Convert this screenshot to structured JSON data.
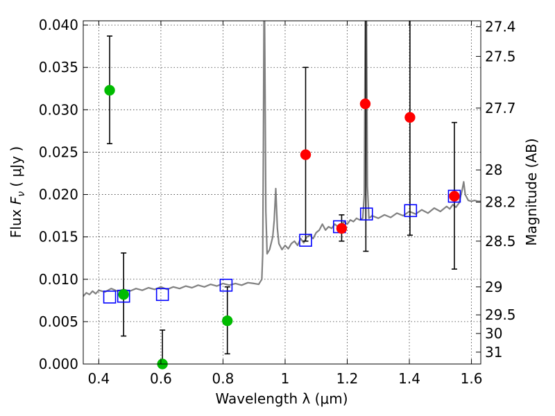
{
  "chart_data": {
    "type": "scatter",
    "title": "",
    "xlabel": "Wavelength  λ (μm)",
    "ylabel": "Flux  F_ν  ( μJy )",
    "ylabel_parts": {
      "prefix": "Flux  ",
      "var": "F",
      "sub": "ν",
      "unit": "  ( μJy )"
    },
    "y2label": "Magnitude (AB)",
    "xlim": [
      0.35,
      1.63
    ],
    "ylim": [
      0.0,
      0.0405
    ],
    "grid": true,
    "x_ticks": [
      {
        "value": 0.4,
        "label": "0.4"
      },
      {
        "value": 0.6,
        "label": "0.6"
      },
      {
        "value": 0.8,
        "label": "0.8"
      },
      {
        "value": 1.0,
        "label": "1"
      },
      {
        "value": 1.2,
        "label": "1.2"
      },
      {
        "value": 1.4,
        "label": "1.4"
      },
      {
        "value": 1.6,
        "label": "1.6"
      }
    ],
    "y_ticks": [
      {
        "value": 0.0,
        "label": "0.000"
      },
      {
        "value": 0.005,
        "label": "0.005"
      },
      {
        "value": 0.01,
        "label": "0.010"
      },
      {
        "value": 0.015,
        "label": "0.015"
      },
      {
        "value": 0.02,
        "label": "0.020"
      },
      {
        "value": 0.025,
        "label": "0.025"
      },
      {
        "value": 0.03,
        "label": "0.030"
      },
      {
        "value": 0.035,
        "label": "0.035"
      },
      {
        "value": 0.04,
        "label": "0.040"
      }
    ],
    "mag_ticks": [
      {
        "flux": 0.0398,
        "label": "27.4"
      },
      {
        "flux": 0.0363,
        "label": "27.5"
      },
      {
        "flux": 0.0302,
        "label": "27.7"
      },
      {
        "flux": 0.0229,
        "label": "28"
      },
      {
        "flux": 0.0191,
        "label": "28.2"
      },
      {
        "flux": 0.0145,
        "label": "28.5"
      },
      {
        "flux": 0.0091,
        "label": "29"
      },
      {
        "flux": 0.0058,
        "label": "29.5"
      },
      {
        "flux": 0.0036,
        "label": "30"
      },
      {
        "flux": 0.0014,
        "label": "31"
      }
    ],
    "series": [
      {
        "kind": "spectrum",
        "color": "#808080",
        "points": [
          [
            0.35,
            0.008
          ],
          [
            0.36,
            0.0084
          ],
          [
            0.37,
            0.0082
          ],
          [
            0.38,
            0.0086
          ],
          [
            0.39,
            0.0083
          ],
          [
            0.4,
            0.0087
          ],
          [
            0.42,
            0.0085
          ],
          [
            0.44,
            0.0089
          ],
          [
            0.46,
            0.0086
          ],
          [
            0.48,
            0.0088
          ],
          [
            0.5,
            0.0086
          ],
          [
            0.52,
            0.0089
          ],
          [
            0.54,
            0.0087
          ],
          [
            0.56,
            0.009
          ],
          [
            0.58,
            0.0088
          ],
          [
            0.6,
            0.0091
          ],
          [
            0.62,
            0.0088
          ],
          [
            0.64,
            0.0091
          ],
          [
            0.66,
            0.0089
          ],
          [
            0.68,
            0.0092
          ],
          [
            0.7,
            0.009
          ],
          [
            0.72,
            0.0093
          ],
          [
            0.74,
            0.0091
          ],
          [
            0.76,
            0.0094
          ],
          [
            0.78,
            0.0092
          ],
          [
            0.8,
            0.0095
          ],
          [
            0.82,
            0.0093
          ],
          [
            0.84,
            0.0095
          ],
          [
            0.86,
            0.0093
          ],
          [
            0.88,
            0.0096
          ],
          [
            0.9,
            0.0095
          ],
          [
            0.915,
            0.0094
          ],
          [
            0.925,
            0.01
          ],
          [
            0.928,
            0.013
          ],
          [
            0.93,
            0.025
          ],
          [
            0.932,
            0.0405
          ],
          [
            0.934,
            0.0405
          ],
          [
            0.936,
            0.03
          ],
          [
            0.938,
            0.018
          ],
          [
            0.942,
            0.013
          ],
          [
            0.95,
            0.0135
          ],
          [
            0.96,
            0.015
          ],
          [
            0.965,
            0.017
          ],
          [
            0.97,
            0.0207
          ],
          [
            0.975,
            0.016
          ],
          [
            0.98,
            0.0142
          ],
          [
            0.99,
            0.0135
          ],
          [
            1.0,
            0.014
          ],
          [
            1.01,
            0.0136
          ],
          [
            1.02,
            0.0142
          ],
          [
            1.03,
            0.0145
          ],
          [
            1.04,
            0.014
          ],
          [
            1.05,
            0.0148
          ],
          [
            1.06,
            0.0143
          ],
          [
            1.07,
            0.015
          ],
          [
            1.08,
            0.0152
          ],
          [
            1.09,
            0.0148
          ],
          [
            1.1,
            0.0155
          ],
          [
            1.11,
            0.0158
          ],
          [
            1.12,
            0.0165
          ],
          [
            1.13,
            0.0158
          ],
          [
            1.14,
            0.0162
          ],
          [
            1.15,
            0.016
          ],
          [
            1.16,
            0.0165
          ],
          [
            1.17,
            0.0162
          ],
          [
            1.18,
            0.0163
          ],
          [
            1.19,
            0.0168
          ],
          [
            1.2,
            0.0165
          ],
          [
            1.21,
            0.017
          ],
          [
            1.22,
            0.0168
          ],
          [
            1.23,
            0.0172
          ],
          [
            1.24,
            0.017
          ],
          [
            1.25,
            0.0172
          ],
          [
            1.255,
            0.02
          ],
          [
            1.258,
            0.0405
          ],
          [
            1.262,
            0.0405
          ],
          [
            1.265,
            0.021
          ],
          [
            1.27,
            0.0172
          ],
          [
            1.28,
            0.0175
          ],
          [
            1.3,
            0.0172
          ],
          [
            1.32,
            0.0176
          ],
          [
            1.34,
            0.0173
          ],
          [
            1.36,
            0.0178
          ],
          [
            1.38,
            0.0175
          ],
          [
            1.4,
            0.018
          ],
          [
            1.42,
            0.0177
          ],
          [
            1.44,
            0.0182
          ],
          [
            1.46,
            0.0178
          ],
          [
            1.48,
            0.0184
          ],
          [
            1.5,
            0.018
          ],
          [
            1.52,
            0.0186
          ],
          [
            1.53,
            0.0183
          ],
          [
            1.54,
            0.0188
          ],
          [
            1.55,
            0.0185
          ],
          [
            1.56,
            0.019
          ],
          [
            1.57,
            0.0205
          ],
          [
            1.575,
            0.0215
          ],
          [
            1.58,
            0.02
          ],
          [
            1.59,
            0.0193
          ],
          [
            1.6,
            0.0192
          ],
          [
            1.61,
            0.0193
          ],
          [
            1.62,
            0.0192
          ],
          [
            1.63,
            0.0192
          ]
        ]
      },
      {
        "kind": "errorbars",
        "color": "#000000",
        "points": [
          {
            "x": 0.435,
            "low": 0.026,
            "high": 0.0387
          },
          {
            "x": 0.48,
            "low": 0.0033,
            "high": 0.0131
          },
          {
            "x": 0.605,
            "low": 0.0,
            "high": 0.004
          },
          {
            "x": 0.814,
            "low": 0.0012,
            "high": 0.0091
          },
          {
            "x": 1.066,
            "low": 0.0145,
            "high": 0.035
          },
          {
            "x": 1.182,
            "low": 0.0145,
            "high": 0.0176
          },
          {
            "x": 1.26,
            "low": 0.0133,
            "high": 0.0405
          },
          {
            "x": 1.402,
            "low": 0.0152,
            "high": 0.0405
          },
          {
            "x": 1.545,
            "low": 0.0112,
            "high": 0.0285
          }
        ]
      },
      {
        "kind": "model-boxes",
        "color": "#0000ff",
        "points": [
          [
            0.435,
            0.0079
          ],
          [
            0.48,
            0.008
          ],
          [
            0.605,
            0.0082
          ],
          [
            0.81,
            0.0093
          ],
          [
            1.066,
            0.0146
          ],
          [
            1.175,
            0.0162
          ],
          [
            1.262,
            0.0177
          ],
          [
            1.404,
            0.0181
          ],
          [
            1.545,
            0.0198
          ]
        ]
      },
      {
        "kind": "detections-optical",
        "color": "#00bb00",
        "points": [
          [
            0.435,
            0.0323
          ],
          [
            0.48,
            0.0082
          ],
          [
            0.605,
            0.0
          ],
          [
            0.814,
            0.0051
          ]
        ]
      },
      {
        "kind": "detections-nir",
        "color": "#ff0000",
        "points": [
          [
            1.066,
            0.0247
          ],
          [
            1.182,
            0.016
          ],
          [
            1.258,
            0.0307
          ],
          [
            1.402,
            0.0291
          ],
          [
            1.545,
            0.0198
          ]
        ]
      }
    ]
  }
}
